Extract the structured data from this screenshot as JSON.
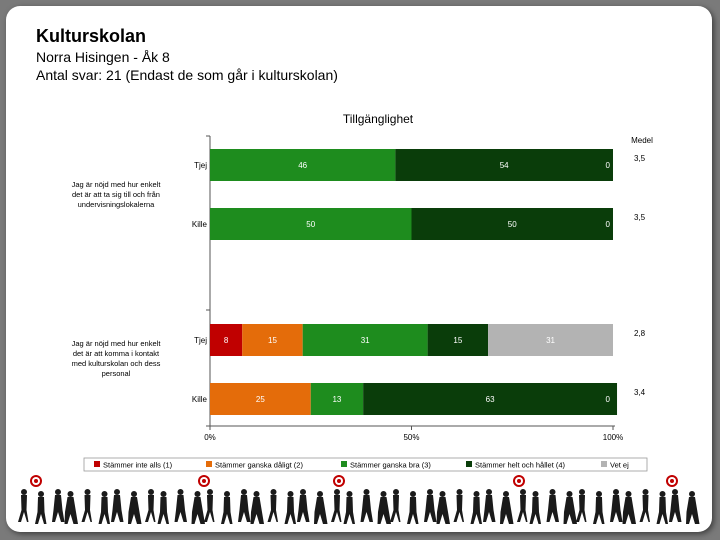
{
  "header": {
    "title": "Kulturskolan",
    "subtitle": "Norra Hisingen - Åk 8",
    "responses": "Antal svar: 21 (Endast de som går i kulturskolan)"
  },
  "chart_data": {
    "type": "bar",
    "orientation": "horizontal",
    "stacked": "percent",
    "title": "Tillgänglighet",
    "mean_header": "Medel",
    "xlim": [
      0,
      100
    ],
    "x_ticks": [
      "0%",
      "50%",
      "100%"
    ],
    "questions": [
      {
        "label_lines": [
          "Jag är nöjd med hur enkelt",
          "det är att ta sig till och från",
          "undervisningslokalerna"
        ],
        "rows": [
          {
            "group": "Tjej",
            "values": [
              0,
              0,
              46,
              54,
              0
            ],
            "mean": "3,5"
          },
          {
            "group": "Kille",
            "values": [
              0,
              0,
              50,
              50,
              0
            ],
            "mean": "3,5"
          }
        ]
      },
      {
        "label_lines": [
          "Jag är nöjd med hur enkelt",
          "det är att komma i kontakt",
          "med kulturskolan och dess",
          "personal"
        ],
        "rows": [
          {
            "group": "Tjej",
            "values": [
              8,
              15,
              31,
              15,
              31
            ],
            "mean": "2,8"
          },
          {
            "group": "Kille",
            "values": [
              0,
              25,
              13,
              63,
              0
            ],
            "mean": "3,4"
          }
        ]
      }
    ],
    "series": [
      {
        "name": "Stämmer inte alls (1)",
        "color": "#c00000"
      },
      {
        "name": "Stämmer ganska dåligt (2)",
        "color": "#e46c0a"
      },
      {
        "name": "Stämmer ganska bra (3)",
        "color": "#1e8c1e"
      },
      {
        "name": "Stämmer helt och hållet (4)",
        "color": "#0a3d0a"
      },
      {
        "name": "Vet ej",
        "color": "#b3b3b3"
      }
    ],
    "legend_position": "bottom"
  }
}
